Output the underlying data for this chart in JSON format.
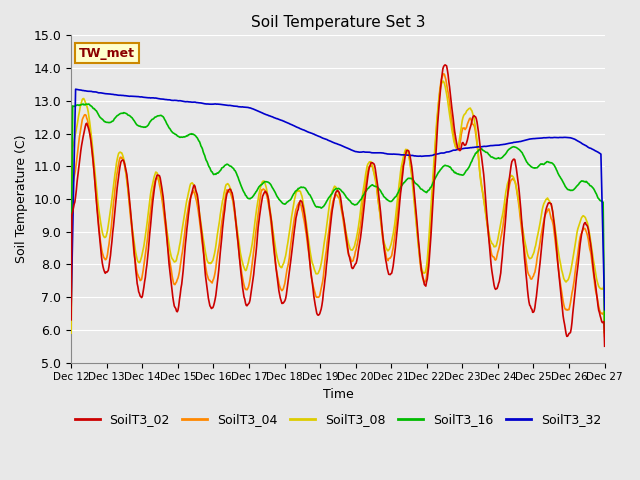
{
  "title": "Soil Temperature Set 3",
  "xlabel": "Time",
  "ylabel": "Soil Temperature (C)",
  "ylim": [
    5.0,
    15.0
  ],
  "yticks": [
    5.0,
    6.0,
    7.0,
    8.0,
    9.0,
    10.0,
    11.0,
    12.0,
    13.0,
    14.0,
    15.0
  ],
  "xtick_labels": [
    "Dec 12",
    "Dec 13",
    "Dec 14",
    "Dec 15",
    "Dec 16",
    "Dec 17",
    "Dec 18",
    "Dec 19",
    "Dec 20",
    "Dec 21",
    "Dec 22",
    "Dec 23",
    "Dec 24",
    "Dec 25",
    "Dec 26",
    "Dec 27"
  ],
  "series_colors": {
    "SoilT3_02": "#cc0000",
    "SoilT3_04": "#ff8800",
    "SoilT3_08": "#ddcc00",
    "SoilT3_16": "#00bb00",
    "SoilT3_32": "#0000cc"
  },
  "legend_label": "TW_met",
  "bg_color": "#e8e8e8",
  "plot_bg_color": "#e8e8e8",
  "grid_color": "#ffffff",
  "linewidth": 1.2,
  "figsize": [
    6.4,
    4.8
  ],
  "dpi": 100
}
